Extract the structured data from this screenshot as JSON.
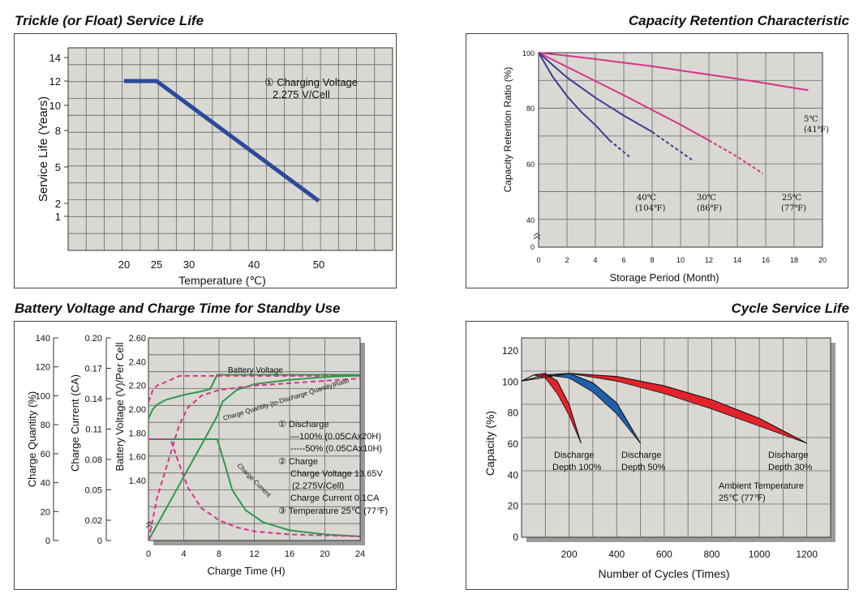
{
  "charts": {
    "c1": {
      "title": "Trickle (or Float) Service Life"
    },
    "c2": {
      "title": "Capacity Retention Characteristic"
    },
    "c3": {
      "title": "Battery Voltage and Charge Time for Standby Use"
    },
    "c4": {
      "title": "Cycle Service Life"
    }
  },
  "chart_data": [
    {
      "type": "line",
      "title": "Trickle (or Float) Service Life",
      "xlabel": "Temperature (℃)",
      "ylabel": "Service Life (Years)",
      "x_ticks": [
        "20",
        "25",
        "30",
        "40",
        "50"
      ],
      "y_ticks": [
        "14",
        "12",
        "10",
        "8",
        "5",
        "2",
        "1"
      ],
      "grid": true,
      "annotation": [
        "① Charging Voltage",
        "2.275 V/Cell"
      ],
      "series": [
        {
          "x": [
            20,
            25,
            50
          ],
          "y": [
            12,
            12,
            2.2
          ],
          "color": "#2b4a9a"
        }
      ]
    },
    {
      "type": "line",
      "title": "Capacity Retention Characteristic",
      "xlabel": "Storage Period (Month)",
      "ylabel": "Capacity Retention Ratio (%)",
      "x_ticks": [
        "0",
        "2",
        "4",
        "6",
        "8",
        "10",
        "12",
        "14",
        "16",
        "18",
        "20"
      ],
      "y_ticks": [
        "100",
        "80",
        "60",
        "40",
        "0"
      ],
      "xlim": [
        0,
        20
      ],
      "grid": true,
      "series": [
        {
          "name": "5℃ (41℉)",
          "x": [
            0,
            2,
            4,
            6,
            8,
            10,
            12,
            14,
            16,
            18,
            19
          ],
          "y": [
            100,
            98.9,
            97.7,
            96.4,
            95.1,
            93.6,
            92.1,
            90.6,
            89,
            87.3,
            86.5
          ],
          "color": "#d6338a"
        },
        {
          "name": "25℃ (77℉)",
          "x": [
            0,
            2,
            4,
            6,
            8,
            10,
            12,
            14,
            15.8
          ],
          "y": [
            100,
            94.9,
            89.8,
            84.7,
            79.4,
            74.1,
            68.5,
            62.6,
            56.5
          ],
          "dashed_from_x": 12.5,
          "color": "#d6338a"
        },
        {
          "name": "30℃ (86℉)",
          "x": [
            0,
            2,
            4,
            6,
            8,
            10.8
          ],
          "y": [
            100,
            91.1,
            83.8,
            77.4,
            71.5,
            61.5
          ],
          "dashed_from_x": 8,
          "color": "#3a3f8f"
        },
        {
          "name": "40℃ (104℉)",
          "x": [
            0,
            1,
            2,
            3,
            4,
            5,
            6.4
          ],
          "y": [
            100,
            91.3,
            84.4,
            78.7,
            74,
            68.5,
            62.6
          ],
          "dashed_from_x": 5,
          "color": "#3a3f8f"
        }
      ],
      "annotations": [
        "5℃",
        "(41℉)",
        "25℃",
        "(77℉)",
        "30℃",
        "(86℉)",
        "40℃",
        "(104℉)"
      ]
    },
    {
      "type": "line",
      "title": "Battery Voltage and Charge Time for Standby Use",
      "xlabel": "Charge Time (H)",
      "x_ticks": [
        "0",
        "4",
        "8",
        "12",
        "16",
        "20",
        "24"
      ],
      "xlim": [
        0,
        24
      ],
      "axes": [
        {
          "label": "Charge Quantity (%)",
          "ticks": [
            "140",
            "120",
            "100",
            "80",
            "60",
            "40",
            "20",
            "0"
          ]
        },
        {
          "label": "Charge Current (CA)",
          "ticks": [
            "0.20",
            "0.17",
            "0.14",
            "0.11",
            "0.08",
            "0.05",
            "0.02",
            "0"
          ]
        },
        {
          "label": "Battery Voltage (V)/Per Cell",
          "ticks": [
            "2.60",
            "2.40",
            "2.20",
            "2.00",
            "1.80",
            "1.60",
            "1.40"
          ]
        }
      ],
      "grid": true,
      "series": [
        {
          "name": "Battery Voltage",
          "curve": "100% discharge",
          "x": [
            0,
            0.5,
            1,
            2,
            4,
            6,
            7,
            7.8,
            24
          ],
          "y": [
            1.92,
            2.0,
            2.04,
            2.08,
            2.12,
            2.15,
            2.17,
            2.29,
            2.29
          ],
          "unit": "V",
          "color": "#2e9a4e"
        },
        {
          "name": "Battery Voltage",
          "curve": "50% discharge",
          "x": [
            0,
            0.5,
            1,
            2,
            3.5,
            24
          ],
          "y": [
            2.06,
            2.16,
            2.2,
            2.23,
            2.28,
            2.28
          ],
          "unit": "V",
          "color": "#d6338a",
          "dashed": true
        },
        {
          "name": "Charge Quantity (to-Discharge Quantity) Ratio",
          "curve": "100% discharge",
          "x": [
            0,
            2,
            4,
            6,
            7.8,
            8.4,
            10,
            12,
            16,
            20,
            24
          ],
          "y": [
            0,
            22,
            44,
            66,
            86,
            96,
            104,
            108,
            111,
            113,
            114
          ],
          "unit": "%",
          "color": "#2e9a4e"
        },
        {
          "name": "Charge Quantity (to-Discharge Quantity) Ratio",
          "curve": "50% discharge",
          "x": [
            0,
            1,
            2,
            3.5,
            4.5,
            6,
            8,
            12,
            24
          ],
          "y": [
            0,
            30,
            50,
            80,
            92,
            100,
            104,
            107,
            112
          ],
          "unit": "%",
          "color": "#d6338a",
          "dashed": true
        },
        {
          "name": "Charge Current",
          "curve": "100% discharge",
          "x": [
            0,
            7.8,
            8.5,
            9.5,
            11,
            13,
            16,
            20,
            24
          ],
          "y": [
            0.1,
            0.1,
            0.08,
            0.05,
            0.03,
            0.018,
            0.01,
            0.006,
            0.004
          ],
          "unit": "CA",
          "color": "#2e9a4e"
        },
        {
          "name": "Charge Current",
          "curve": "50% discharge",
          "x": [
            0,
            2.5,
            3.5,
            4.5,
            6,
            8,
            10,
            12,
            16,
            20,
            24
          ],
          "y": [
            0.1,
            0.1,
            0.075,
            0.052,
            0.032,
            0.02,
            0.013,
            0.009,
            0.006,
            0.005,
            0.004
          ],
          "unit": "CA",
          "color": "#d6338a",
          "dashed": true
        }
      ],
      "curve_labels": [
        "Battery Voltage",
        "Charge Quantity (to-Discharge Quantity)Ratio",
        "Charge Current"
      ],
      "annotations": [
        "① Discharge",
        "—100% (0.05CAx20H)",
        "-----50% (0.05CAx10H)",
        "② Charge",
        "Charge Voltage 13.65V",
        "(2.275V/Cell)",
        "Charge Current 0.1CA",
        "③ Temperature 25℃ (77℉)"
      ]
    },
    {
      "type": "area",
      "title": "Cycle Service Life",
      "xlabel": "Number of Cycles (Times)",
      "ylabel": "Capacity (%)",
      "x_ticks": [
        "200",
        "400",
        "600",
        "800",
        "1000",
        "1200"
      ],
      "y_ticks": [
        "120",
        "100",
        "80",
        "60",
        "40",
        "20",
        "0"
      ],
      "xlim": [
        0,
        1300
      ],
      "ylim": [
        0,
        120
      ],
      "grid": true,
      "series": [
        {
          "name": "Discharge Depth 100%",
          "color": "#e3232b",
          "x": [
            0,
            50,
            100,
            150,
            200,
            250
          ],
          "y_upper": [
            100,
            104,
            105,
            100,
            85,
            60
          ],
          "y_lower": [
            100,
            104,
            102,
            92,
            78,
            60
          ]
        },
        {
          "name": "Discharge Depth 50%",
          "color": "#1f5fae",
          "x": [
            0,
            100,
            200,
            300,
            400,
            500
          ],
          "y_upper": [
            100,
            104,
            105,
            99,
            86,
            60
          ],
          "y_lower": [
            100,
            104,
            102,
            93,
            79,
            60
          ]
        },
        {
          "name": "Discharge Depth 30%",
          "color": "#e3232b",
          "x": [
            0,
            200,
            400,
            600,
            800,
            1000,
            1200
          ],
          "y_upper": [
            100,
            105,
            103,
            97,
            88,
            76,
            60
          ],
          "y_lower": [
            100,
            105,
            100,
            92,
            82,
            71,
            60
          ]
        }
      ],
      "annotations": [
        "Discharge",
        "Depth 100%",
        "Discharge",
        "Depth 50%",
        "Discharge",
        "Depth 30%",
        "Ambient Temperature",
        "25℃ (77℉)"
      ]
    }
  ]
}
